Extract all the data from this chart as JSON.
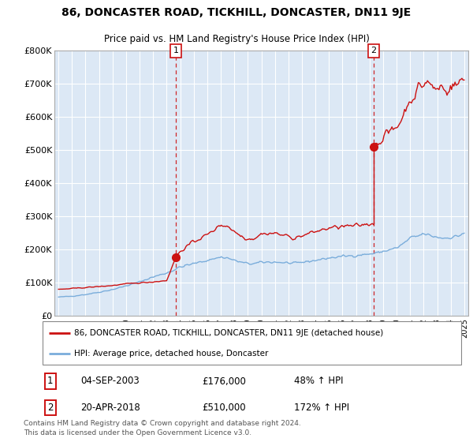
{
  "title": "86, DONCASTER ROAD, TICKHILL, DONCASTER, DN11 9JE",
  "subtitle": "Price paid vs. HM Land Registry's House Price Index (HPI)",
  "ylim": [
    0,
    800000
  ],
  "yticks": [
    0,
    100000,
    200000,
    300000,
    400000,
    500000,
    600000,
    700000,
    800000
  ],
  "ytick_labels": [
    "£0",
    "£100K",
    "£200K",
    "£300K",
    "£400K",
    "£500K",
    "£600K",
    "£700K",
    "£800K"
  ],
  "background_color": "#dce8f5",
  "legend_label_red": "86, DONCASTER ROAD, TICKHILL, DONCASTER, DN11 9JE (detached house)",
  "legend_label_blue": "HPI: Average price, detached house, Doncaster",
  "annotation1_label": "1",
  "annotation1_date": "04-SEP-2003",
  "annotation1_price": "£176,000",
  "annotation1_hpi": "48% ↑ HPI",
  "annotation2_label": "2",
  "annotation2_date": "20-APR-2018",
  "annotation2_price": "£510,000",
  "annotation2_hpi": "172% ↑ HPI",
  "footer": "Contains HM Land Registry data © Crown copyright and database right 2024.\nThis data is licensed under the Open Government Licence v3.0.",
  "red_line_color": "#cc1111",
  "blue_line_color": "#7aaddb",
  "marker1_x": 2003.67,
  "marker1_y": 176000,
  "marker2_x": 2018.3,
  "marker2_y": 510000,
  "vline1_x": 2003.67,
  "vline2_x": 2018.3,
  "xlim_left": 1994.7,
  "xlim_right": 2025.3
}
